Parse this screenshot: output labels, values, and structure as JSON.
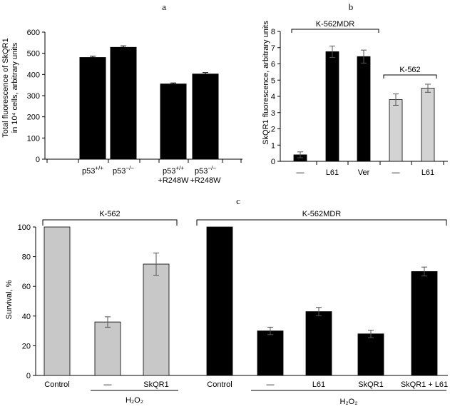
{
  "panel_letters": {
    "a": "a",
    "b": "b",
    "c": "c"
  },
  "chart_data": [
    {
      "id": "a",
      "type": "bar",
      "ylabel_line1": "Total fluorescence of SkQR1",
      "ylabel_line2": "in 10⁴ cells, arbitrary units",
      "ylim": [
        0,
        600
      ],
      "yticks": [
        "0",
        "100",
        "200",
        "300",
        "400",
        "500",
        "600"
      ],
      "categories": [
        "p53+/+",
        "p53−/−",
        "p53+/+ +R248W",
        "p53−/− +R248W"
      ],
      "category_labels": [
        {
          "main": "p53",
          "sup": "+/+",
          "line2": ""
        },
        {
          "main": "p53",
          "sup": "−/−",
          "line2": ""
        },
        {
          "main": "p53",
          "sup": "+/+",
          "line2": "+R248W"
        },
        {
          "main": "p53",
          "sup": "−/−",
          "line2": "+R248W"
        }
      ],
      "values": [
        480,
        528,
        355,
        402
      ],
      "errors": [
        6,
        7,
        5,
        7
      ],
      "colors": [
        "#000000",
        "#000000",
        "#000000",
        "#000000"
      ]
    },
    {
      "id": "b",
      "type": "bar",
      "ylabel": "SkQR1 fluorescence, arbitrary units",
      "ylim": [
        0,
        8
      ],
      "yticks": [
        "0",
        "1",
        "2",
        "3",
        "4",
        "5",
        "6",
        "7",
        "8"
      ],
      "categories": [
        "—",
        "L61",
        "Ver",
        "—",
        "L61"
      ],
      "values": [
        0.4,
        6.75,
        6.45,
        3.8,
        4.5
      ],
      "errors": [
        0.18,
        0.35,
        0.4,
        0.35,
        0.25
      ],
      "colors": [
        "#000000",
        "#000000",
        "#000000",
        "#d3d3d3",
        "#d3d3d3"
      ],
      "groups": [
        {
          "label": "K-562MDR",
          "from": 0,
          "to": 2
        },
        {
          "label": "K-562",
          "from": 3,
          "to": 4
        }
      ]
    },
    {
      "id": "c",
      "type": "bar",
      "ylabel": "Survival, %",
      "ylim": [
        0,
        100
      ],
      "yticks": [
        "0",
        "20",
        "40",
        "60",
        "80",
        "100"
      ],
      "categories": [
        "Control",
        "—",
        "SkQR1",
        "Control",
        "—",
        "L61",
        "SkQR1",
        "SkQR1 + L61"
      ],
      "values": [
        100,
        36,
        75,
        100,
        30,
        43,
        28,
        70
      ],
      "errors": [
        0,
        3.5,
        7.5,
        0,
        2.5,
        2.8,
        2.5,
        3
      ],
      "colors": [
        "#c8c8c8",
        "#c8c8c8",
        "#c8c8c8",
        "#000000",
        "#000000",
        "#000000",
        "#000000",
        "#000000"
      ],
      "groups": [
        {
          "label": "K-562",
          "from": 0,
          "to": 2
        },
        {
          "label": "K-562MDR",
          "from": 3,
          "to": 7
        }
      ],
      "treatment_label": "H₂O₂",
      "treatment_spans": [
        {
          "from": 1,
          "to": 2
        },
        {
          "from": 4,
          "to": 7
        }
      ]
    }
  ]
}
